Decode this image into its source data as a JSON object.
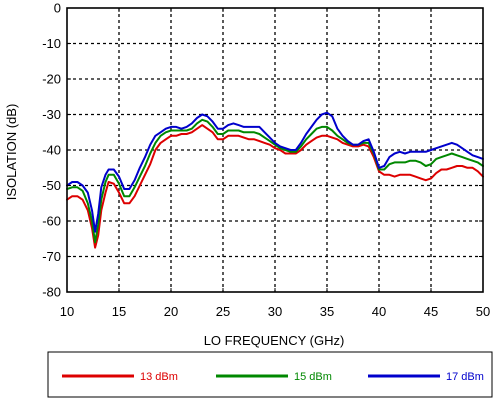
{
  "chart_data": {
    "type": "line",
    "xlabel": "LO FREQUENCY (GHz)",
    "ylabel": "ISOLATION  (dB)",
    "xlim": [
      10,
      50
    ],
    "ylim": [
      -80,
      0
    ],
    "x_ticks": [
      10,
      15,
      20,
      25,
      30,
      35,
      40,
      45,
      50
    ],
    "y_ticks": [
      0,
      -10,
      -20,
      -30,
      -40,
      -50,
      -60,
      -70,
      -80
    ],
    "grid": true,
    "legend_position": "bottom",
    "series": [
      {
        "name": "13 dBm",
        "color": "#dd0000",
        "x": [
          10,
          10.5,
          11,
          11.5,
          12,
          12.4,
          12.7,
          13,
          13.3,
          13.7,
          14,
          14.5,
          15,
          15.5,
          16,
          16.5,
          17,
          17.5,
          18,
          18.5,
          19,
          19.5,
          20,
          20.5,
          21,
          21.5,
          22,
          22.5,
          23,
          23.5,
          24,
          24.5,
          25,
          25.5,
          26,
          26.5,
          27,
          27.5,
          28,
          28.5,
          29,
          29.5,
          30,
          30.5,
          31,
          31.5,
          32,
          32.5,
          33,
          33.5,
          34,
          34.5,
          35,
          35.5,
          36,
          36.5,
          37,
          37.5,
          38,
          38.5,
          39,
          39.5,
          40,
          40.5,
          41,
          41.5,
          42,
          42.5,
          43,
          43.5,
          44,
          44.5,
          45,
          45.5,
          46,
          46.5,
          47,
          47.5,
          48,
          48.5,
          49,
          49.5,
          50
        ],
        "y": [
          -54,
          -53,
          -53,
          -54,
          -57,
          -62,
          -67.5,
          -64,
          -57,
          -52,
          -49,
          -49.5,
          -52,
          -55,
          -55,
          -53,
          -50,
          -47,
          -44,
          -40,
          -38,
          -37,
          -36,
          -36,
          -35.5,
          -35.5,
          -35,
          -34,
          -33,
          -34,
          -35,
          -37,
          -37,
          -36,
          -36,
          -36,
          -36.5,
          -37,
          -37,
          -37.5,
          -38,
          -38.5,
          -39.5,
          -40,
          -41,
          -41,
          -41,
          -40,
          -38.5,
          -37.5,
          -36.5,
          -36,
          -36,
          -36.5,
          -37,
          -38,
          -38.5,
          -39,
          -39,
          -38.5,
          -39,
          -42,
          -46,
          -47,
          -47,
          -47.5,
          -47,
          -47,
          -47,
          -47.5,
          -48,
          -48.5,
          -48,
          -46.5,
          -45.5,
          -45.5,
          -45,
          -44.5,
          -44.5,
          -45,
          -45,
          -46,
          -47.5
        ]
      },
      {
        "name": "15 dBm",
        "color": "#008800",
        "x": [
          10,
          10.5,
          11,
          11.5,
          12,
          12.4,
          12.7,
          13,
          13.3,
          13.7,
          14,
          14.5,
          15,
          15.5,
          16,
          16.5,
          17,
          17.5,
          18,
          18.5,
          19,
          19.5,
          20,
          20.5,
          21,
          21.5,
          22,
          22.5,
          23,
          23.5,
          24,
          24.5,
          25,
          25.5,
          26,
          26.5,
          27,
          27.5,
          28,
          28.5,
          29,
          29.5,
          30,
          30.5,
          31,
          31.5,
          32,
          32.5,
          33,
          33.5,
          34,
          34.5,
          35,
          35.5,
          36,
          36.5,
          37,
          37.5,
          38,
          38.5,
          39,
          39.5,
          40,
          40.5,
          41,
          41.5,
          42,
          42.5,
          43,
          43.5,
          44,
          44.5,
          45,
          45.5,
          46,
          46.5,
          47,
          47.5,
          48,
          48.5,
          49,
          49.5,
          50
        ],
        "y": [
          -51,
          -50.5,
          -50.5,
          -51.5,
          -55,
          -60,
          -66,
          -61,
          -54,
          -49,
          -47,
          -47,
          -49.5,
          -53,
          -53,
          -50.5,
          -47.5,
          -44.5,
          -41,
          -38,
          -36,
          -35,
          -34.5,
          -34.5,
          -34.5,
          -34.5,
          -34,
          -32.5,
          -31.5,
          -32,
          -33.5,
          -35.5,
          -35.5,
          -34.5,
          -34.5,
          -34.5,
          -35,
          -35,
          -35,
          -35.5,
          -36.5,
          -37.5,
          -38.5,
          -39.5,
          -40,
          -40.5,
          -40.5,
          -39,
          -37,
          -35.5,
          -34,
          -33.5,
          -33.5,
          -34.5,
          -36,
          -37,
          -38,
          -38.5,
          -38.5,
          -38,
          -38,
          -41,
          -45.5,
          -45.5,
          -44,
          -43.5,
          -43.5,
          -43.5,
          -43,
          -43,
          -43.5,
          -44.5,
          -44,
          -42.5,
          -42,
          -41.5,
          -41,
          -41.5,
          -42,
          -42.5,
          -43,
          -43.5,
          -44.5
        ]
      },
      {
        "name": "17 dBm",
        "color": "#0000cc",
        "x": [
          10,
          10.5,
          11,
          11.5,
          12,
          12.4,
          12.7,
          13,
          13.3,
          13.7,
          14,
          14.5,
          15,
          15.5,
          16,
          16.5,
          17,
          17.5,
          18,
          18.5,
          19,
          19.5,
          20,
          20.5,
          21,
          21.5,
          22,
          22.5,
          23,
          23.5,
          24,
          24.5,
          25,
          25.5,
          26,
          26.5,
          27,
          27.5,
          28,
          28.5,
          29,
          29.5,
          30,
          30.5,
          31,
          31.5,
          32,
          32.5,
          33,
          33.5,
          34,
          34.5,
          35,
          35.5,
          36,
          36.5,
          37,
          37.5,
          38,
          38.5,
          39,
          39.5,
          40,
          40.5,
          41,
          41.5,
          42,
          42.5,
          43,
          43.5,
          44,
          44.5,
          45,
          45.5,
          46,
          46.5,
          47,
          47.5,
          48,
          48.5,
          49,
          49.5,
          50
        ],
        "y": [
          -50,
          -49,
          -49,
          -50,
          -52,
          -57,
          -63,
          -58,
          -50.5,
          -47,
          -45.5,
          -45.5,
          -47.5,
          -51,
          -51,
          -48.5,
          -45,
          -42,
          -38.5,
          -36,
          -35,
          -34,
          -33.5,
          -33.5,
          -34,
          -33.5,
          -32.5,
          -31,
          -30,
          -30.5,
          -32,
          -34,
          -34,
          -33,
          -32.5,
          -33,
          -33.5,
          -33.5,
          -33.5,
          -33.5,
          -35,
          -36.5,
          -38,
          -39,
          -39.5,
          -40,
          -40,
          -38,
          -35.5,
          -33.5,
          -31.5,
          -30,
          -29.5,
          -30.5,
          -34,
          -36,
          -37.5,
          -38.5,
          -38.5,
          -37.5,
          -37,
          -40.5,
          -45,
          -44.5,
          -42,
          -41,
          -40.5,
          -41,
          -40.5,
          -40.5,
          -40.5,
          -40.5,
          -40,
          -39.5,
          -39,
          -38.5,
          -38,
          -38.5,
          -39.5,
          -40.5,
          -41.5,
          -42,
          -42.5
        ]
      }
    ]
  }
}
